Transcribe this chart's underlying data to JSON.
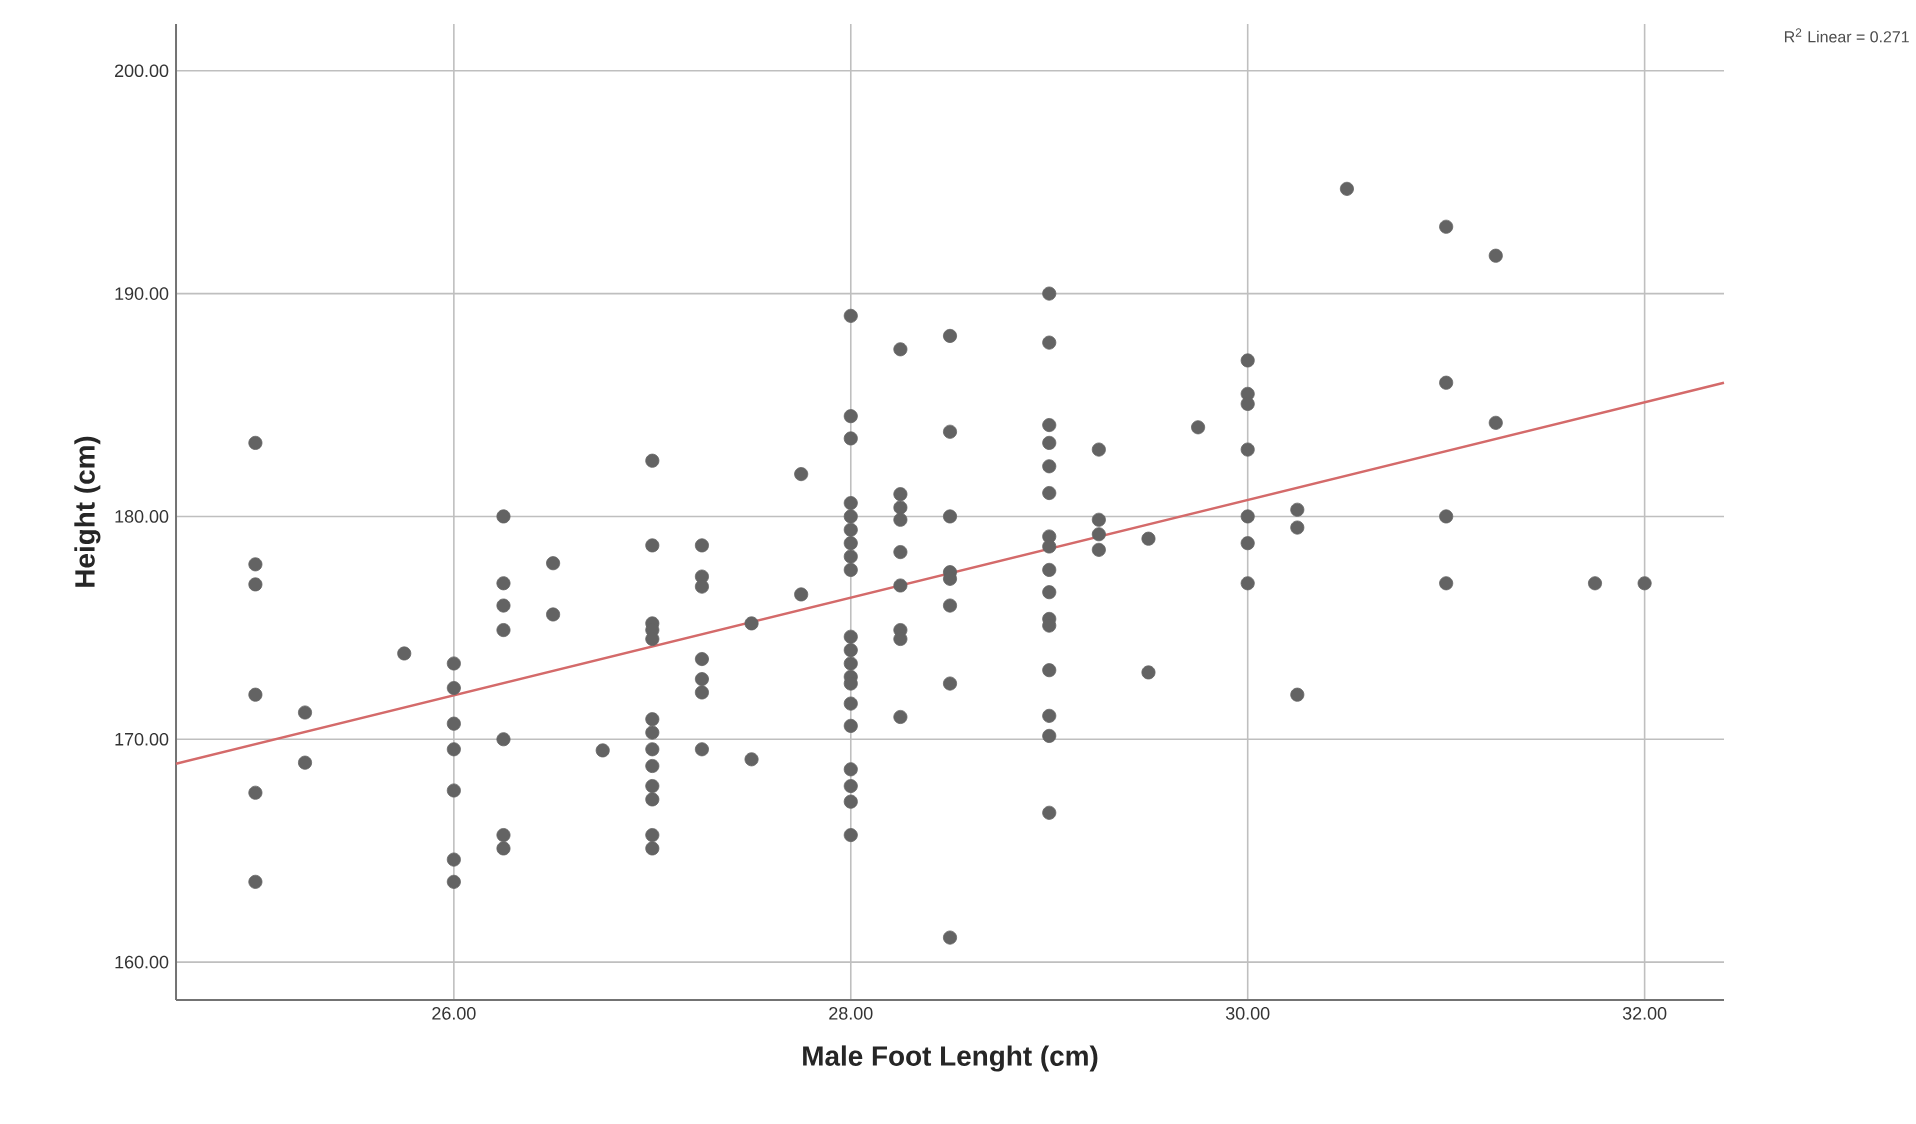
{
  "chart_data": {
    "type": "scatter",
    "xlabel": "Male Foot Lenght (cm)",
    "ylabel": "Height (cm)",
    "annotations": [
      "R$^{2}$ Linear = 0.271"
    ],
    "xlim": [
      24.6,
      32.4
    ],
    "ylim": [
      158.3,
      202.1
    ],
    "xticks": [
      {
        "value": 26,
        "label": "26.00"
      },
      {
        "value": 28,
        "label": "28.00"
      },
      {
        "value": 30,
        "label": "30.00"
      },
      {
        "value": 32,
        "label": "32.00"
      }
    ],
    "yticks": [
      {
        "value": 160,
        "label": "160.00"
      },
      {
        "value": 170,
        "label": "170.00"
      },
      {
        "value": 180,
        "label": "180.00"
      },
      {
        "value": 190,
        "label": "190.00"
      },
      {
        "value": 200,
        "label": "200.00"
      }
    ],
    "grid": true,
    "series": [
      {
        "marker": "circle",
        "color": "#636363",
        "x": [
          25,
          25,
          25,
          25,
          25,
          25,
          25.25,
          25.25,
          25.75,
          26,
          26,
          26,
          26,
          26,
          26,
          26,
          26.25,
          26.25,
          26.25,
          26.25,
          26.25,
          26.25,
          26.25,
          26.5,
          26.5,
          26.75,
          27,
          27,
          27,
          27,
          27,
          27,
          27,
          27,
          27,
          27,
          27,
          27,
          27,
          27.25,
          27.25,
          27.25,
          27.25,
          27.25,
          27.25,
          27.25,
          27.5,
          27.5,
          27.75,
          27.75,
          28,
          28,
          28,
          28,
          28,
          28,
          28,
          28,
          28,
          28,
          28,
          28,
          28,
          28,
          28,
          28,
          28,
          28,
          28,
          28,
          28.25,
          28.25,
          28.25,
          28.25,
          28.25,
          28.25,
          28.25,
          28.25,
          28.25,
          28.5,
          28.5,
          28.5,
          28.5,
          28.5,
          28.5,
          28.5,
          28.5,
          29,
          29,
          29,
          29,
          29,
          29,
          29,
          29,
          29,
          29,
          29,
          29,
          29,
          29,
          29,
          29,
          29.25,
          29.25,
          29.25,
          29.25,
          29.5,
          29.5,
          29.75,
          30,
          30,
          30,
          30,
          30,
          30,
          30,
          30.25,
          30.25,
          30.25,
          30.5,
          31,
          31,
          31,
          31,
          31.25,
          31.25,
          31.75,
          32
        ],
        "values": [
          183.3,
          177.85,
          176.95,
          172.0,
          167.6,
          163.6,
          171.2,
          168.95,
          173.85,
          173.4,
          172.3,
          170.7,
          169.55,
          167.7,
          164.6,
          163.6,
          180.0,
          177.0,
          176.0,
          174.9,
          170.0,
          165.7,
          165.1,
          177.9,
          175.6,
          169.5,
          182.5,
          178.7,
          175.2,
          174.9,
          174.5,
          170.9,
          170.3,
          169.55,
          168.8,
          167.9,
          167.3,
          165.7,
          165.1,
          178.7,
          177.3,
          176.85,
          173.6,
          172.7,
          172.1,
          169.55,
          175.2,
          169.1,
          181.9,
          176.5,
          189.0,
          184.5,
          183.5,
          180.6,
          180.0,
          179.4,
          178.8,
          178.2,
          177.6,
          174.6,
          174.0,
          173.4,
          172.8,
          172.5,
          171.6,
          170.6,
          168.65,
          167.9,
          167.2,
          165.7,
          187.5,
          181.0,
          180.4,
          179.85,
          178.4,
          176.9,
          174.9,
          174.5,
          171.0,
          188.1,
          183.8,
          180.0,
          177.5,
          177.2,
          176.0,
          172.5,
          161.1,
          190.0,
          187.8,
          184.1,
          183.3,
          182.25,
          181.05,
          179.1,
          178.65,
          177.6,
          176.6,
          175.4,
          175.1,
          173.1,
          171.05,
          170.15,
          166.7,
          183.0,
          179.85,
          179.2,
          178.5,
          179.0,
          173.0,
          184.0,
          187.0,
          185.5,
          185.05,
          183.0,
          180.0,
          178.8,
          177.0,
          180.3,
          179.5,
          172.0,
          194.7,
          193.0,
          186.0,
          180.0,
          177.0,
          191.7,
          184.2,
          177.0,
          177.0
        ]
      },
      {
        "type": "line",
        "marker": "none",
        "color": "#d46a6a",
        "x": [
          24.6,
          32.4
        ],
        "values": [
          168.9,
          186.0
        ]
      }
    ]
  }
}
